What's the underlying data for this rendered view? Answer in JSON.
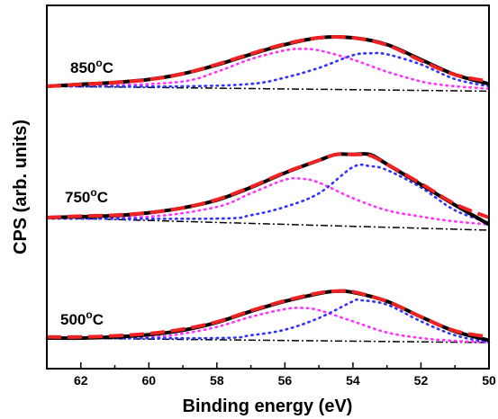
{
  "chart_data": {
    "type": "line",
    "title": "",
    "xlabel": "Binding energy (eV)",
    "ylabel": "CPS (arb. units)",
    "xlim": [
      63,
      50
    ],
    "x_reversed": true,
    "x_ticks": [
      62,
      60,
      58,
      56,
      54,
      52,
      50
    ],
    "y_ticks_shown": false,
    "grid": false,
    "panels": [
      {
        "label_main": "850",
        "label_sup": "o",
        "label_unit": "C",
        "series": [
          {
            "role": "background",
            "color": "#000000",
            "style": "dash-dot",
            "x": [
              63,
              50
            ],
            "y": [
              0.0,
              -0.1
            ]
          },
          {
            "role": "component-1",
            "color": "#ff33ff",
            "style": "dotted",
            "x": [
              63,
              61,
              59,
              58,
              57,
              56,
              55.5,
              55,
              54,
              53,
              52,
              51.5,
              51,
              50
            ],
            "y": [
              0.0,
              0.02,
              0.1,
              0.3,
              0.56,
              0.74,
              0.77,
              0.74,
              0.55,
              0.3,
              0.1,
              0.04,
              0.0,
              -0.05
            ]
          },
          {
            "role": "component-2",
            "color": "#3333ff",
            "style": "dotted",
            "x": [
              63,
              59,
              57,
              56,
              55,
              54,
              53.5,
              53,
              52,
              51,
              50
            ],
            "y": [
              0.0,
              0.0,
              0.05,
              0.18,
              0.38,
              0.64,
              0.68,
              0.66,
              0.45,
              0.15,
              0.0
            ]
          },
          {
            "role": "sum",
            "color": "#000000",
            "style": "solid",
            "x": [
              63,
              62,
              61,
              60,
              59,
              58,
              57,
              56,
              55,
              54,
              53,
              52,
              51,
              50
            ],
            "y": [
              0.0,
              0.04,
              0.08,
              0.14,
              0.26,
              0.44,
              0.66,
              0.86,
              1.0,
              1.0,
              0.86,
              0.55,
              0.24,
              0.05
            ]
          },
          {
            "role": "fit",
            "color": "#ee2222",
            "style": "dashed",
            "x": [
              63,
              62,
              61,
              60,
              59,
              58,
              57,
              56,
              55,
              54,
              53,
              52,
              51,
              50
            ],
            "y": [
              0.0,
              0.04,
              0.08,
              0.14,
              0.26,
              0.45,
              0.67,
              0.87,
              1.0,
              1.0,
              0.85,
              0.53,
              0.24,
              0.1
            ]
          }
        ]
      },
      {
        "label_main": "750",
        "label_sup": "o",
        "label_unit": "C",
        "series": [
          {
            "role": "background",
            "color": "#000000",
            "style": "dash-dot",
            "x": [
              63,
              50
            ],
            "y": [
              0.0,
              -0.26
            ]
          },
          {
            "role": "component-1",
            "color": "#ff33ff",
            "style": "dotted",
            "x": [
              63,
              60,
              58,
              57,
              56,
              55.5,
              55,
              54,
              53,
              52,
              51,
              50
            ],
            "y": [
              0.0,
              0.02,
              0.22,
              0.5,
              0.78,
              0.8,
              0.72,
              0.4,
              0.15,
              0.02,
              -0.08,
              -0.14
            ]
          },
          {
            "role": "component-2",
            "color": "#3333ff",
            "style": "dotted",
            "x": [
              63,
              58,
              57,
              56,
              55,
              54,
              53.5,
              53,
              52,
              51,
              50
            ],
            "y": [
              -0.02,
              -0.02,
              0.05,
              0.22,
              0.5,
              1.04,
              1.06,
              0.98,
              0.62,
              0.15,
              -0.1
            ]
          },
          {
            "role": "sum",
            "color": "#000000",
            "style": "solid",
            "x": [
              63,
              62,
              61,
              60,
              59,
              58,
              57,
              56,
              55,
              54.5,
              54,
              53.5,
              53,
              52,
              51,
              50
            ],
            "y": [
              0.0,
              0.02,
              0.04,
              0.1,
              0.2,
              0.36,
              0.62,
              0.92,
              1.18,
              1.3,
              1.3,
              1.3,
              1.1,
              0.68,
              0.26,
              -0.14
            ]
          },
          {
            "role": "fit",
            "color": "#ee2222",
            "style": "dashed",
            "x": [
              63,
              62,
              61,
              60,
              59,
              58,
              57,
              56,
              55,
              54.5,
              54,
              53.5,
              53,
              52,
              51,
              50
            ],
            "y": [
              0.0,
              0.03,
              0.05,
              0.1,
              0.2,
              0.37,
              0.63,
              0.93,
              1.18,
              1.3,
              1.3,
              1.28,
              1.1,
              0.7,
              0.28,
              0.0
            ]
          }
        ]
      },
      {
        "label_main": "500",
        "label_sup": "o",
        "label_unit": "C",
        "series": [
          {
            "role": "background",
            "color": "#000000",
            "style": "dash-dot",
            "x": [
              63,
              50
            ],
            "y": [
              0.0,
              -0.08
            ]
          },
          {
            "role": "component-1",
            "color": "#ff33ff",
            "style": "dotted",
            "x": [
              63,
              60,
              59,
              58,
              57,
              56,
              55.5,
              55,
              54,
              53,
              52,
              51,
              50
            ],
            "y": [
              0.0,
              0.02,
              0.08,
              0.2,
              0.38,
              0.52,
              0.54,
              0.5,
              0.3,
              0.1,
              0.0,
              -0.05,
              -0.08
            ]
          },
          {
            "role": "component-2",
            "color": "#3333ff",
            "style": "dotted",
            "x": [
              63,
              58,
              57,
              56,
              55,
              54,
              53.8,
              53,
              52,
              51,
              50
            ],
            "y": [
              0.0,
              0.0,
              0.05,
              0.15,
              0.36,
              0.66,
              0.68,
              0.6,
              0.3,
              0.05,
              -0.08
            ]
          },
          {
            "role": "sum",
            "color": "#000000",
            "style": "solid",
            "x": [
              63,
              62,
              61,
              60,
              59,
              58,
              57,
              56,
              55,
              54.5,
              54,
              53,
              52,
              51,
              50
            ],
            "y": [
              0.0,
              0.0,
              0.02,
              0.06,
              0.14,
              0.28,
              0.48,
              0.66,
              0.8,
              0.84,
              0.82,
              0.66,
              0.38,
              0.12,
              -0.04
            ]
          },
          {
            "role": "fit",
            "color": "#ee2222",
            "style": "dashed",
            "x": [
              63,
              62,
              61,
              60,
              59,
              58,
              57,
              56,
              55,
              54.5,
              54,
              53,
              52,
              51,
              50
            ],
            "y": [
              0.02,
              0.02,
              0.04,
              0.08,
              0.16,
              0.29,
              0.49,
              0.67,
              0.81,
              0.84,
              0.83,
              0.66,
              0.38,
              0.13,
              0.02
            ]
          }
        ]
      }
    ]
  }
}
